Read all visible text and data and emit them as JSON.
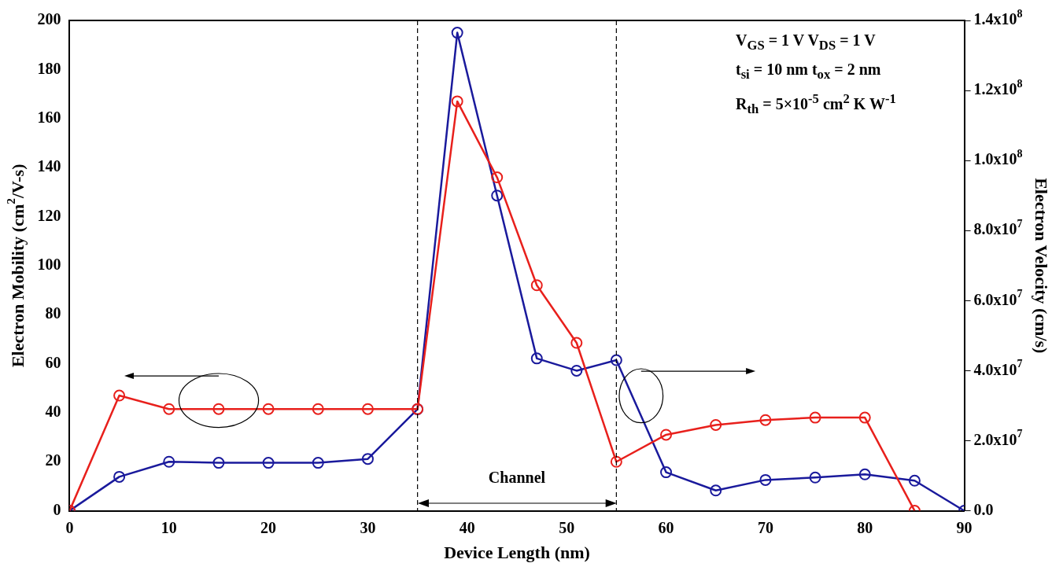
{
  "chart_data": {
    "type": "line",
    "xlabel": "Device Length (nm)",
    "ylabel": "Electron Mobility (cm$^{2}$/V-s)",
    "y2label": "Electron Velocity (cm/s)",
    "x": [
      0,
      5,
      10,
      15,
      20,
      25,
      30,
      35,
      39,
      43,
      47,
      51,
      55,
      60,
      65,
      70,
      75,
      80,
      85,
      90
    ],
    "series": [
      {
        "color": "#e8201c",
        "values": [
          0,
          47,
          41.5,
          41.5,
          41.5,
          41.5,
          41.5,
          41.5,
          167,
          136,
          92,
          68.5,
          20,
          31,
          35,
          37,
          38,
          38,
          0,
          null
        ]
      },
      {
        "color": "#1a1a9c",
        "axis": "y2",
        "values": [
          0,
          9700000.0,
          14000000.0,
          13700000.0,
          13700000.0,
          13700000.0,
          14800000.0,
          29000000.0,
          136500000.0,
          90000000.0,
          43500000.0,
          40000000.0,
          43000000.0,
          11000000.0,
          5800000.0,
          8800000.0,
          9500000.0,
          10400000.0,
          8600000.0,
          0
        ]
      }
    ],
    "xlim": [
      0,
      90
    ],
    "xticks": [
      0,
      10,
      20,
      30,
      40,
      50,
      60,
      70,
      80,
      90
    ],
    "ylim": [
      0,
      200
    ],
    "yticks": [
      0,
      20,
      40,
      60,
      80,
      100,
      120,
      140,
      160,
      180,
      200
    ],
    "y2lim": [
      0,
      140000000.0
    ],
    "y2ticks": [
      {
        "value": 0,
        "label": "0.0"
      },
      {
        "value": 20000000.0,
        "label": "2.0x10$^{7}$"
      },
      {
        "value": 40000000.0,
        "label": "4.0x10$^{7}$"
      },
      {
        "value": 60000000.0,
        "label": "6.0x10$^{7}$"
      },
      {
        "value": 80000000.0,
        "label": "8.0x10$^{7}$"
      },
      {
        "value": 100000000.0,
        "label": "1.0x10$^{8}$"
      },
      {
        "value": 120000000.0,
        "label": "1.2x10$^{8}$"
      },
      {
        "value": 140000000.0,
        "label": "1.4x10$^{8}$"
      }
    ],
    "ref_lines": [
      {
        "axis": "x",
        "value": 35,
        "color": "#000000",
        "line_style": "dashed"
      },
      {
        "axis": "x",
        "value": 55,
        "color": "#000000",
        "line_style": "dashed"
      }
    ],
    "annotations": [
      "Channel",
      "V$_{GS}$ = 1 V  V$_{DS}$ = 1 V",
      "t$_{si}$ = 10 nm  t$_{ox}$ = 2 nm",
      "R$_{th}$ = 5×10$^{-5}$ cm$^{2}$ K W$^{-1}$"
    ],
    "grid": false,
    "legend": false,
    "marker": "circle",
    "line_style": "solid"
  }
}
